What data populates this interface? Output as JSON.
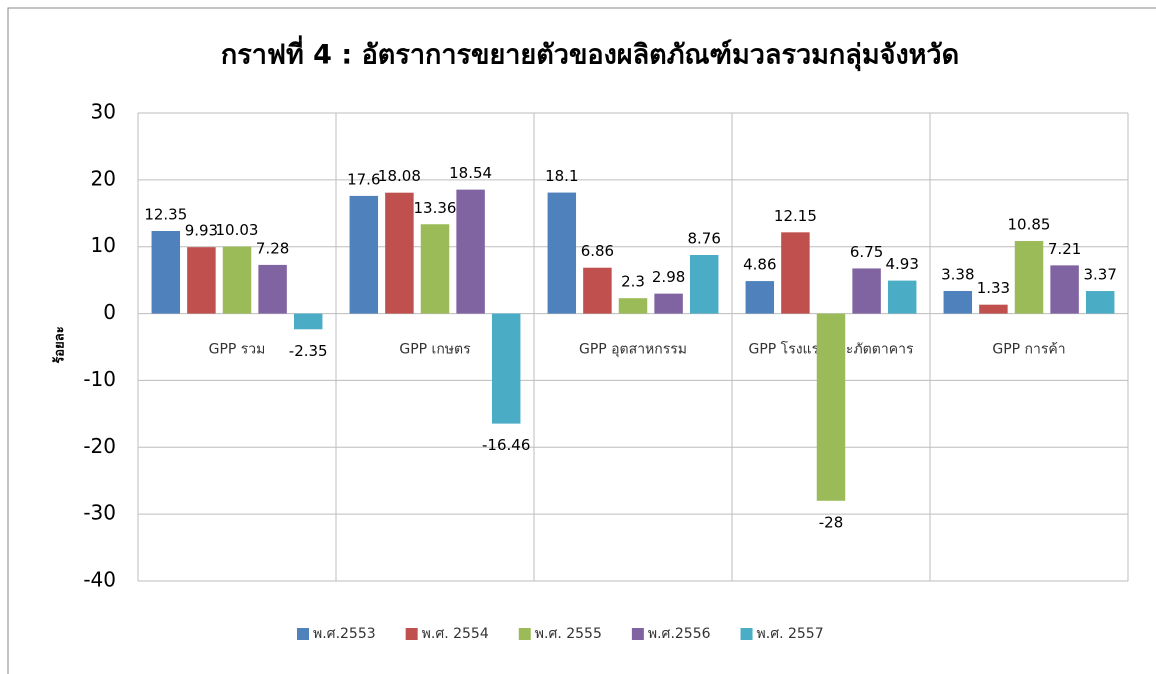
{
  "chart_data": {
    "type": "bar",
    "title": "กราฟที่ 4 : อัตราการขยายตัวของผลิตภัณฑ์มวลรวมกลุ่มจังหวัด",
    "y_label": "ร้อยละ",
    "categories": [
      "GPP รวม",
      "GPP เกษตร",
      "GPP อุตสาหกรรม",
      "GPP โรงแรมและภัตตาคาร",
      "GPP การค้า"
    ],
    "series": [
      {
        "name": "พ.ศ.2553",
        "color": "#4f81bd",
        "values": [
          12.35,
          17.6,
          18.1,
          4.86,
          3.38
        ]
      },
      {
        "name": "พ.ศ. 2554",
        "color": "#c0504d",
        "values": [
          9.93,
          18.08,
          6.86,
          12.15,
          1.33
        ]
      },
      {
        "name": "พ.ศ. 2555",
        "color": "#9bbb59",
        "values": [
          10.03,
          13.36,
          2.3,
          -28,
          10.85
        ]
      },
      {
        "name": "พ.ศ.2556",
        "color": "#8064a2",
        "values": [
          7.28,
          18.54,
          2.98,
          6.75,
          7.21
        ]
      },
      {
        "name": "พ.ศ. 2557",
        "color": "#4bacc6",
        "values": [
          -2.35,
          -16.46,
          8.76,
          4.93,
          3.37
        ]
      }
    ],
    "ylim": [
      -40,
      30
    ],
    "yticks": [
      -40,
      -30,
      -20,
      -10,
      0,
      10,
      20,
      30
    ],
    "grid": true,
    "legend": "bottom"
  }
}
